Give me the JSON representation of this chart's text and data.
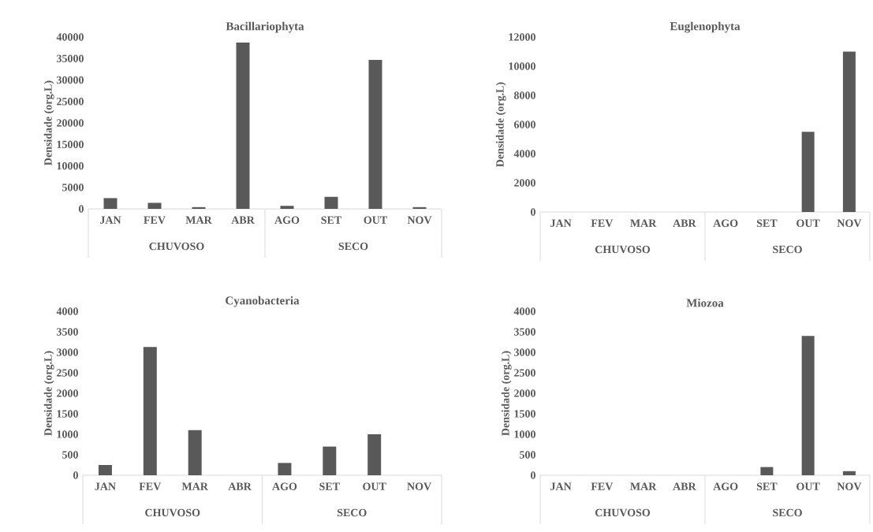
{
  "chart_data": [
    {
      "type": "bar",
      "title": "Bacillariophyta",
      "ylabel": "Densidade (org.L)",
      "categories": [
        "JAN",
        "FEV",
        "MAR",
        "ABR",
        "AGO",
        "SET",
        "OUT",
        "NOV"
      ],
      "values": [
        2500,
        1400,
        400,
        38700,
        700,
        2800,
        34700,
        400
      ],
      "color": "#595959",
      "ylim": [
        0,
        40000
      ],
      "yticks": [
        0,
        5000,
        10000,
        15000,
        20000,
        25000,
        30000,
        35000,
        40000
      ],
      "annotations": [
        "CHUVOSO",
        "SECO"
      ]
    },
    {
      "type": "bar",
      "title": "Euglenophyta",
      "ylabel": "Densidade (org.L)",
      "categories": [
        "JAN",
        "FEV",
        "MAR",
        "ABR",
        "AGO",
        "SET",
        "OUT",
        "NOV"
      ],
      "values": [
        0,
        0,
        0,
        0,
        0,
        0,
        5500,
        11000
      ],
      "color": "#595959",
      "ylim": [
        0,
        12000
      ],
      "yticks": [
        0,
        2000,
        4000,
        6000,
        8000,
        10000,
        12000
      ],
      "annotations": [
        "CHUVOSO",
        "SECO"
      ]
    },
    {
      "type": "bar",
      "title": "Cyanobacteria",
      "ylabel": "Densidade (org.L)",
      "categories": [
        "JAN",
        "FEV",
        "MAR",
        "ABR",
        "AGO",
        "SET",
        "OUT",
        "NOV"
      ],
      "values": [
        250,
        3130,
        1100,
        0,
        300,
        700,
        1000,
        0
      ],
      "color": "#595959",
      "ylim": [
        0,
        4000
      ],
      "yticks": [
        0,
        500,
        1000,
        1500,
        2000,
        2500,
        3000,
        3500,
        4000
      ],
      "annotations": [
        "CHUVOSO",
        "SECO"
      ]
    },
    {
      "type": "bar",
      "title": "Miozoa",
      "ylabel": "Densidade (org.L)",
      "categories": [
        "JAN",
        "FEV",
        "MAR",
        "ABR",
        "AGO",
        "SET",
        "OUT",
        "NOV"
      ],
      "values": [
        0,
        0,
        0,
        0,
        0,
        200,
        3400,
        100
      ],
      "color": "#595959",
      "ylim": [
        0,
        4000
      ],
      "yticks": [
        0,
        500,
        1000,
        1500,
        2000,
        2500,
        3000,
        3500,
        4000
      ],
      "annotations": [
        "CHUVOSO",
        "SECO"
      ]
    }
  ]
}
